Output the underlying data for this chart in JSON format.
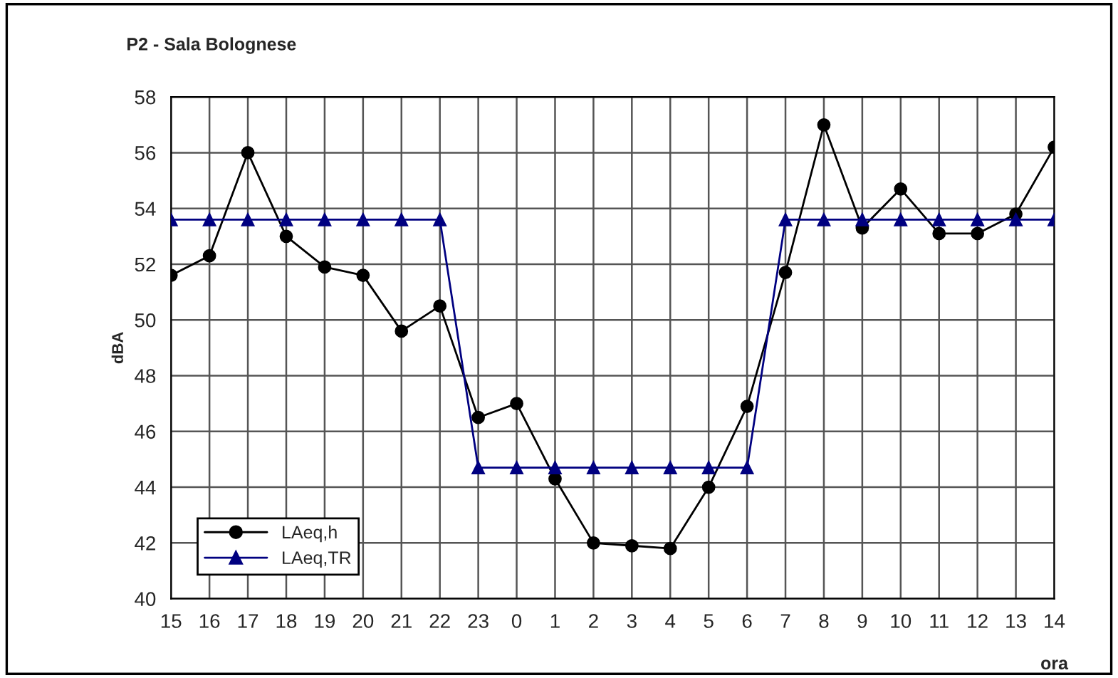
{
  "chart_data": {
    "type": "line",
    "title": "P2 - Sala Bolognese",
    "xlabel": "ora",
    "ylabel": "dBA",
    "categories": [
      "15",
      "16",
      "17",
      "18",
      "19",
      "20",
      "21",
      "22",
      "23",
      "0",
      "1",
      "2",
      "3",
      "4",
      "5",
      "6",
      "7",
      "8",
      "9",
      "10",
      "11",
      "12",
      "13",
      "14"
    ],
    "series": [
      {
        "name": "LAeq,h",
        "color": "#000000",
        "marker": "circle",
        "values": [
          51.6,
          52.3,
          56.0,
          53.0,
          51.9,
          51.6,
          49.6,
          50.5,
          46.5,
          47.0,
          44.3,
          42.0,
          41.9,
          41.8,
          44.0,
          46.9,
          51.7,
          57.0,
          53.3,
          54.7,
          53.1,
          53.1,
          53.8,
          56.2
        ]
      },
      {
        "name": "LAeq,TR",
        "color": "#000080",
        "marker": "triangle",
        "values": [
          53.6,
          53.6,
          53.6,
          53.6,
          53.6,
          53.6,
          53.6,
          53.6,
          44.7,
          44.7,
          44.7,
          44.7,
          44.7,
          44.7,
          44.7,
          44.7,
          53.6,
          53.6,
          53.6,
          53.6,
          53.6,
          53.6,
          53.6,
          53.6
        ]
      }
    ],
    "ylim": [
      40,
      58
    ],
    "yticks": [
      40,
      42,
      44,
      46,
      48,
      50,
      52,
      54,
      56,
      58
    ],
    "grid": true,
    "legend": "bottom left",
    "line_style": "solid"
  }
}
